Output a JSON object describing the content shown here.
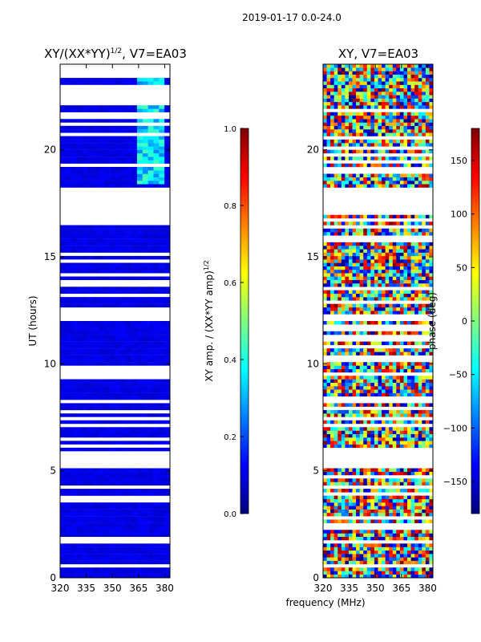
{
  "suptitle": "2019-01-17 0.0-24.0",
  "chart_data": [
    {
      "type": "heatmap",
      "title": "XY/(XX*YY)",
      "title_sup": "1/2",
      "title_suffix": ", V7=EA03",
      "ylabel": "UT (hours)",
      "xlim": [
        320,
        383
      ],
      "ylim": [
        0,
        24
      ],
      "xticks": [
        320,
        335,
        350,
        365,
        380
      ],
      "yticks": [
        0,
        5,
        10,
        15,
        20
      ],
      "colorbar": {
        "label": "XY amp. / (XX*YY amp)",
        "label_sup": "1/2",
        "range": [
          0.0,
          1.0
        ],
        "ticks": [
          "0.0",
          "0.2",
          "0.4",
          "0.6",
          "0.8",
          "1.0"
        ],
        "colormap": "jet"
      },
      "gap_bands_hours": [
        [
          5.2,
          5.9
        ],
        [
          17.0,
          18.3
        ],
        [
          22.3,
          22.9
        ],
        [
          23.4,
          24.0
        ]
      ],
      "bright_band_mhz": [
        362,
        378
      ]
    },
    {
      "type": "heatmap",
      "title": "XY, V7=EA03",
      "xlabel": "frequency (MHz)",
      "xlim": [
        320,
        383
      ],
      "ylim": [
        0,
        24
      ],
      "xticks": [
        320,
        335,
        350,
        365,
        380
      ],
      "yticks": [
        0,
        5,
        10,
        15,
        20
      ],
      "colorbar": {
        "label": "phase (deg)",
        "range": [
          -180,
          180
        ],
        "ticks": [
          "150",
          "100",
          "50",
          "0",
          "−50",
          "−100",
          "−150"
        ],
        "colormap": "jet"
      },
      "gap_bands_hours": [
        [
          5.2,
          5.9
        ],
        [
          17.0,
          18.3
        ]
      ]
    }
  ]
}
